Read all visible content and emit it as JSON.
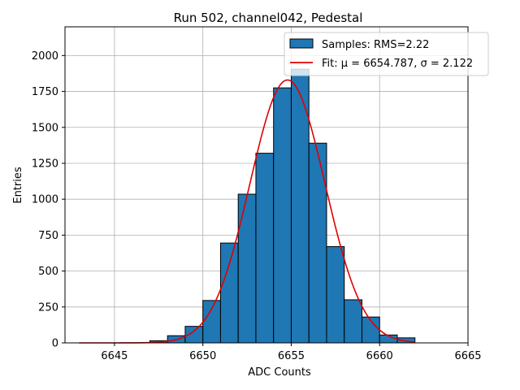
{
  "chart_data": {
    "type": "bar",
    "title": "Run 502, channel042, Pedestal",
    "xlabel": "ADC Counts",
    "ylabel": "Entries",
    "xlim": [
      6642.2,
      6665
    ],
    "ylim": [
      0,
      2200
    ],
    "x_ticks": [
      6645,
      6650,
      6655,
      6660,
      6665
    ],
    "y_ticks": [
      0,
      250,
      500,
      750,
      1000,
      1250,
      1500,
      1750,
      2000
    ],
    "grid": true,
    "legend_position": "top-right",
    "histogram": {
      "name": "Samples: RMS=2.22",
      "bin_width": 1,
      "bins": [
        {
          "left": 6647,
          "count": 15
        },
        {
          "left": 6648,
          "count": 50
        },
        {
          "left": 6649,
          "count": 115
        },
        {
          "left": 6650,
          "count": 295
        },
        {
          "left": 6651,
          "count": 695
        },
        {
          "left": 6652,
          "count": 1035
        },
        {
          "left": 6653,
          "count": 1320
        },
        {
          "left": 6654,
          "count": 1775
        },
        {
          "left": 6655,
          "count": 1905
        },
        {
          "left": 6656,
          "count": 1390
        },
        {
          "left": 6657,
          "count": 670
        },
        {
          "left": 6658,
          "count": 300
        },
        {
          "left": 6659,
          "count": 180
        },
        {
          "left": 6660,
          "count": 55
        },
        {
          "left": 6661,
          "count": 35
        }
      ]
    },
    "fit": {
      "name_prefix": "Fit: ",
      "mu_text": "μ = 6654.787",
      "sigma_text": "σ = 2.122",
      "mu": 6654.787,
      "sigma": 2.122,
      "amplitude": 1830,
      "x_range": [
        6643,
        6662
      ]
    },
    "colors": {
      "bar_fill": "#1f77b4",
      "bar_edge": "#000000",
      "fit_line": "#e00000",
      "grid": "#b0b0b0"
    }
  }
}
